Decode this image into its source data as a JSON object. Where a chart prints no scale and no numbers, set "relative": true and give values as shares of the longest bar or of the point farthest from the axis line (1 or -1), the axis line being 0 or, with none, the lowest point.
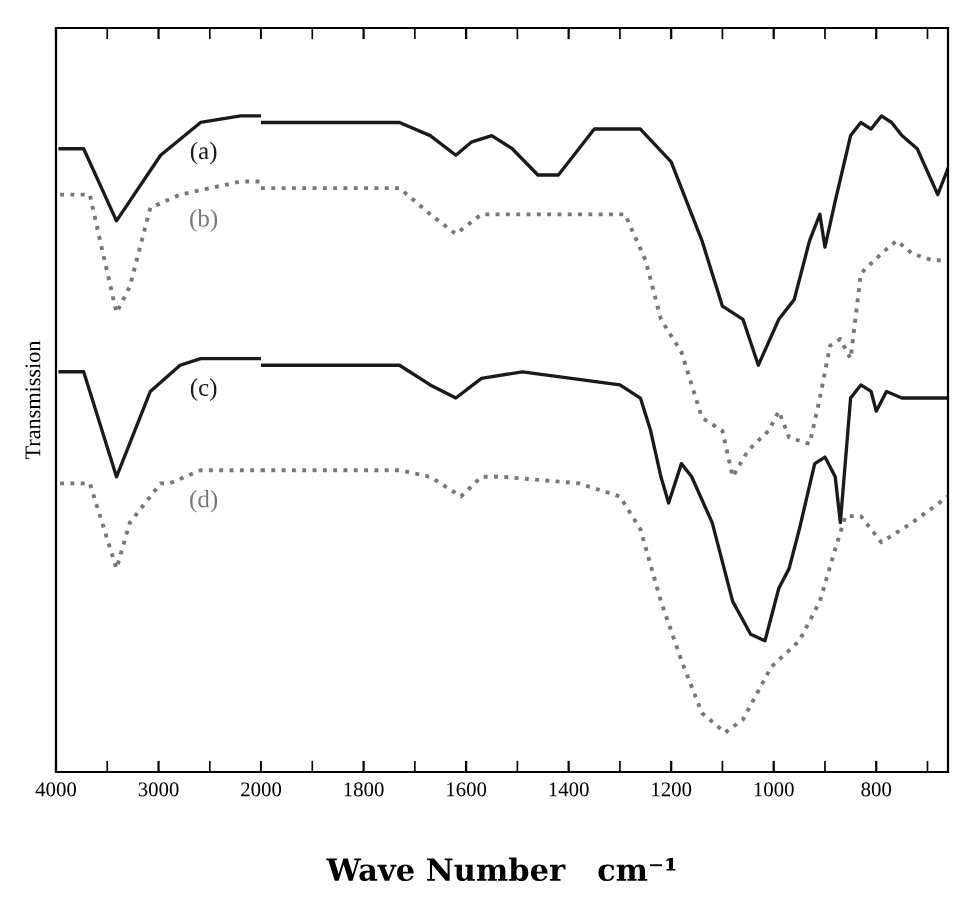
{
  "chart_data": [
    {
      "type": "line",
      "relative": true,
      "ylabel": "Transmission",
      "grid": false,
      "legend": false,
      "xlim": [
        4000,
        2000
      ],
      "xticks": [
        4000,
        {
          "value": 3500,
          "label": null
        },
        3000,
        {
          "value": 2500,
          "label": null
        },
        2000
      ],
      "tick_labels": "x",
      "series": [
        {
          "name": "(a)",
          "color": "#1a1a1a",
          "line_style": "solid",
          "x": [
            3960,
            3730,
            3410,
            2980,
            2590,
            2200,
            2000
          ],
          "values": [
            0.95,
            0.95,
            0.84,
            0.94,
            0.99,
            1.0,
            1.0
          ]
        },
        {
          "name": "(b)",
          "color": "#777777",
          "line_style": "dotted",
          "x": [
            3960,
            3670,
            3570,
            3410,
            3280,
            3080,
            2790,
            2200,
            2000
          ],
          "values": [
            0.88,
            0.88,
            0.81,
            0.7,
            0.74,
            0.86,
            0.88,
            0.9,
            0.9
          ]
        },
        {
          "name": "(c)",
          "color": "#1a1a1a",
          "line_style": "solid",
          "x": [
            3960,
            3730,
            3410,
            3080,
            2790,
            2590,
            2000
          ],
          "values": [
            0.61,
            0.61,
            0.45,
            0.58,
            0.62,
            0.63,
            0.63
          ]
        },
        {
          "name": "(d)",
          "color": "#777777",
          "line_style": "dotted",
          "x": [
            3960,
            3670,
            3410,
            3280,
            2980,
            2890,
            2590,
            2000
          ],
          "values": [
            0.44,
            0.44,
            0.31,
            0.38,
            0.44,
            0.44,
            0.46,
            0.46
          ]
        }
      ]
    },
    {
      "type": "line",
      "relative": true,
      "xlabel": "Wave Number   cm⁻¹",
      "grid": false,
      "legend": false,
      "xlim": [
        2000,
        660
      ],
      "xticks": [
        {
          "value": 2000,
          "label": null
        },
        {
          "value": 1900,
          "label": null
        },
        1800,
        {
          "value": 1700,
          "label": null
        },
        1600,
        {
          "value": 1500,
          "label": null
        },
        1400,
        {
          "value": 1300,
          "label": null
        },
        1200,
        {
          "value": 1100,
          "label": null
        },
        1000,
        {
          "value": 900,
          "label": null
        },
        800,
        {
          "value": 700,
          "label": null
        }
      ],
      "tick_labels": "x",
      "series": [
        {
          "color": "#1a1a1a",
          "line_style": "solid",
          "x": [
            2000,
            1730,
            1670,
            1620,
            1590,
            1550,
            1510,
            1460,
            1420,
            1380,
            1350,
            1260,
            1200,
            1160,
            1140,
            1100,
            1060,
            1030,
            990,
            960,
            930,
            910,
            900,
            880,
            850,
            830,
            810,
            790,
            770,
            750,
            720,
            680,
            660
          ],
          "values": [
            0.99,
            0.99,
            0.97,
            0.94,
            0.96,
            0.97,
            0.95,
            0.91,
            0.91,
            0.95,
            0.98,
            0.98,
            0.93,
            0.85,
            0.81,
            0.71,
            0.69,
            0.62,
            0.69,
            0.72,
            0.81,
            0.85,
            0.8,
            0.87,
            0.97,
            0.99,
            0.98,
            1.0,
            0.99,
            0.97,
            0.95,
            0.88,
            0.92
          ]
        },
        {
          "color": "#777777",
          "line_style": "dotted",
          "x": [
            2000,
            1730,
            1670,
            1620,
            1570,
            1490,
            1420,
            1340,
            1290,
            1250,
            1220,
            1180,
            1140,
            1100,
            1080,
            1050,
            1010,
            990,
            970,
            930,
            910,
            890,
            870,
            850,
            830,
            790,
            760,
            730,
            690,
            660
          ],
          "values": [
            0.89,
            0.89,
            0.85,
            0.82,
            0.85,
            0.85,
            0.85,
            0.85,
            0.85,
            0.78,
            0.69,
            0.64,
            0.54,
            0.52,
            0.45,
            0.49,
            0.52,
            0.55,
            0.51,
            0.5,
            0.57,
            0.65,
            0.66,
            0.63,
            0.76,
            0.79,
            0.81,
            0.79,
            0.78,
            0.78
          ]
        },
        {
          "color": "#1a1a1a",
          "line_style": "solid",
          "x": [
            2000,
            1730,
            1670,
            1620,
            1570,
            1490,
            1300,
            1260,
            1240,
            1220,
            1205,
            1180,
            1160,
            1120,
            1080,
            1045,
            1017,
            990,
            970,
            950,
            920,
            900,
            880,
            870,
            850,
            830,
            810,
            800,
            780,
            750,
            660
          ],
          "values": [
            0.62,
            0.62,
            0.59,
            0.57,
            0.6,
            0.61,
            0.59,
            0.57,
            0.52,
            0.45,
            0.41,
            0.47,
            0.45,
            0.38,
            0.26,
            0.21,
            0.2,
            0.28,
            0.31,
            0.37,
            0.47,
            0.48,
            0.45,
            0.38,
            0.57,
            0.59,
            0.58,
            0.55,
            0.58,
            0.57,
            0.57
          ]
        },
        {
          "color": "#777777",
          "line_style": "dotted",
          "x": [
            2000,
            1730,
            1670,
            1610,
            1570,
            1530,
            1380,
            1300,
            1260,
            1220,
            1180,
            1140,
            1095,
            1060,
            1005,
            950,
            910,
            880,
            860,
            830,
            790,
            730,
            660
          ],
          "values": [
            0.46,
            0.46,
            0.45,
            0.42,
            0.45,
            0.45,
            0.44,
            0.42,
            0.37,
            0.26,
            0.17,
            0.09,
            0.06,
            0.08,
            0.16,
            0.2,
            0.26,
            0.34,
            0.39,
            0.39,
            0.35,
            0.38,
            0.42
          ]
        }
      ]
    }
  ]
}
